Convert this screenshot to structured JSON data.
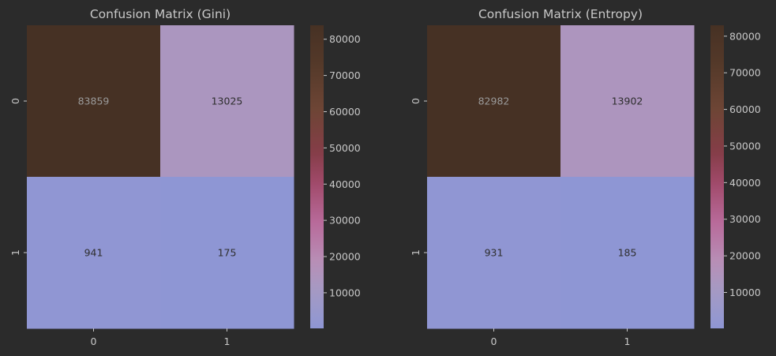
{
  "figure": {
    "background": "#2b2b2b",
    "text_color": "#c8c8c8",
    "tick_color": "#c8c8c8"
  },
  "colormap": {
    "stops": [
      {
        "value": 0.0,
        "color": "#8e96d4"
      },
      {
        "value": 0.12,
        "color": "#a49ac4"
      },
      {
        "value": 0.22,
        "color": "#b88fb6"
      },
      {
        "value": 0.35,
        "color": "#b86a9a"
      },
      {
        "value": 0.48,
        "color": "#a04a6a"
      },
      {
        "value": 0.58,
        "color": "#853d48"
      },
      {
        "value": 0.72,
        "color": "#6e4535"
      },
      {
        "value": 0.86,
        "color": "#563a2a"
      },
      {
        "value": 1.0,
        "color": "#463124"
      }
    ]
  },
  "chart_data": [
    {
      "type": "heatmap",
      "title": "Confusion Matrix (Gini)",
      "xlabel": "",
      "ylabel": "",
      "row_labels": [
        "0",
        "1"
      ],
      "col_labels": [
        "0",
        "1"
      ],
      "values": [
        [
          83859,
          13025
        ],
        [
          941,
          175
        ]
      ],
      "annotations": [
        [
          "83859",
          "13025"
        ],
        [
          "941",
          "175"
        ]
      ],
      "colorbar": {
        "ticks": [
          10000,
          20000,
          30000,
          40000,
          50000,
          60000,
          70000,
          80000
        ],
        "tick_labels": [
          "10000",
          "20000",
          "30000",
          "40000",
          "50000",
          "60000",
          "70000",
          "80000"
        ],
        "vmin": 175,
        "vmax": 83859
      }
    },
    {
      "type": "heatmap",
      "title": "Confusion Matrix (Entropy)",
      "xlabel": "",
      "ylabel": "",
      "row_labels": [
        "0",
        "1"
      ],
      "col_labels": [
        "0",
        "1"
      ],
      "values": [
        [
          82982,
          13902
        ],
        [
          931,
          185
        ]
      ],
      "annotations": [
        [
          "82982",
          "13902"
        ],
        [
          "931",
          "185"
        ]
      ],
      "colorbar": {
        "ticks": [
          10000,
          20000,
          30000,
          40000,
          50000,
          60000,
          70000,
          80000
        ],
        "tick_labels": [
          "10000",
          "20000",
          "30000",
          "40000",
          "50000",
          "60000",
          "70000",
          "80000"
        ],
        "vmin": 185,
        "vmax": 82982
      }
    }
  ]
}
